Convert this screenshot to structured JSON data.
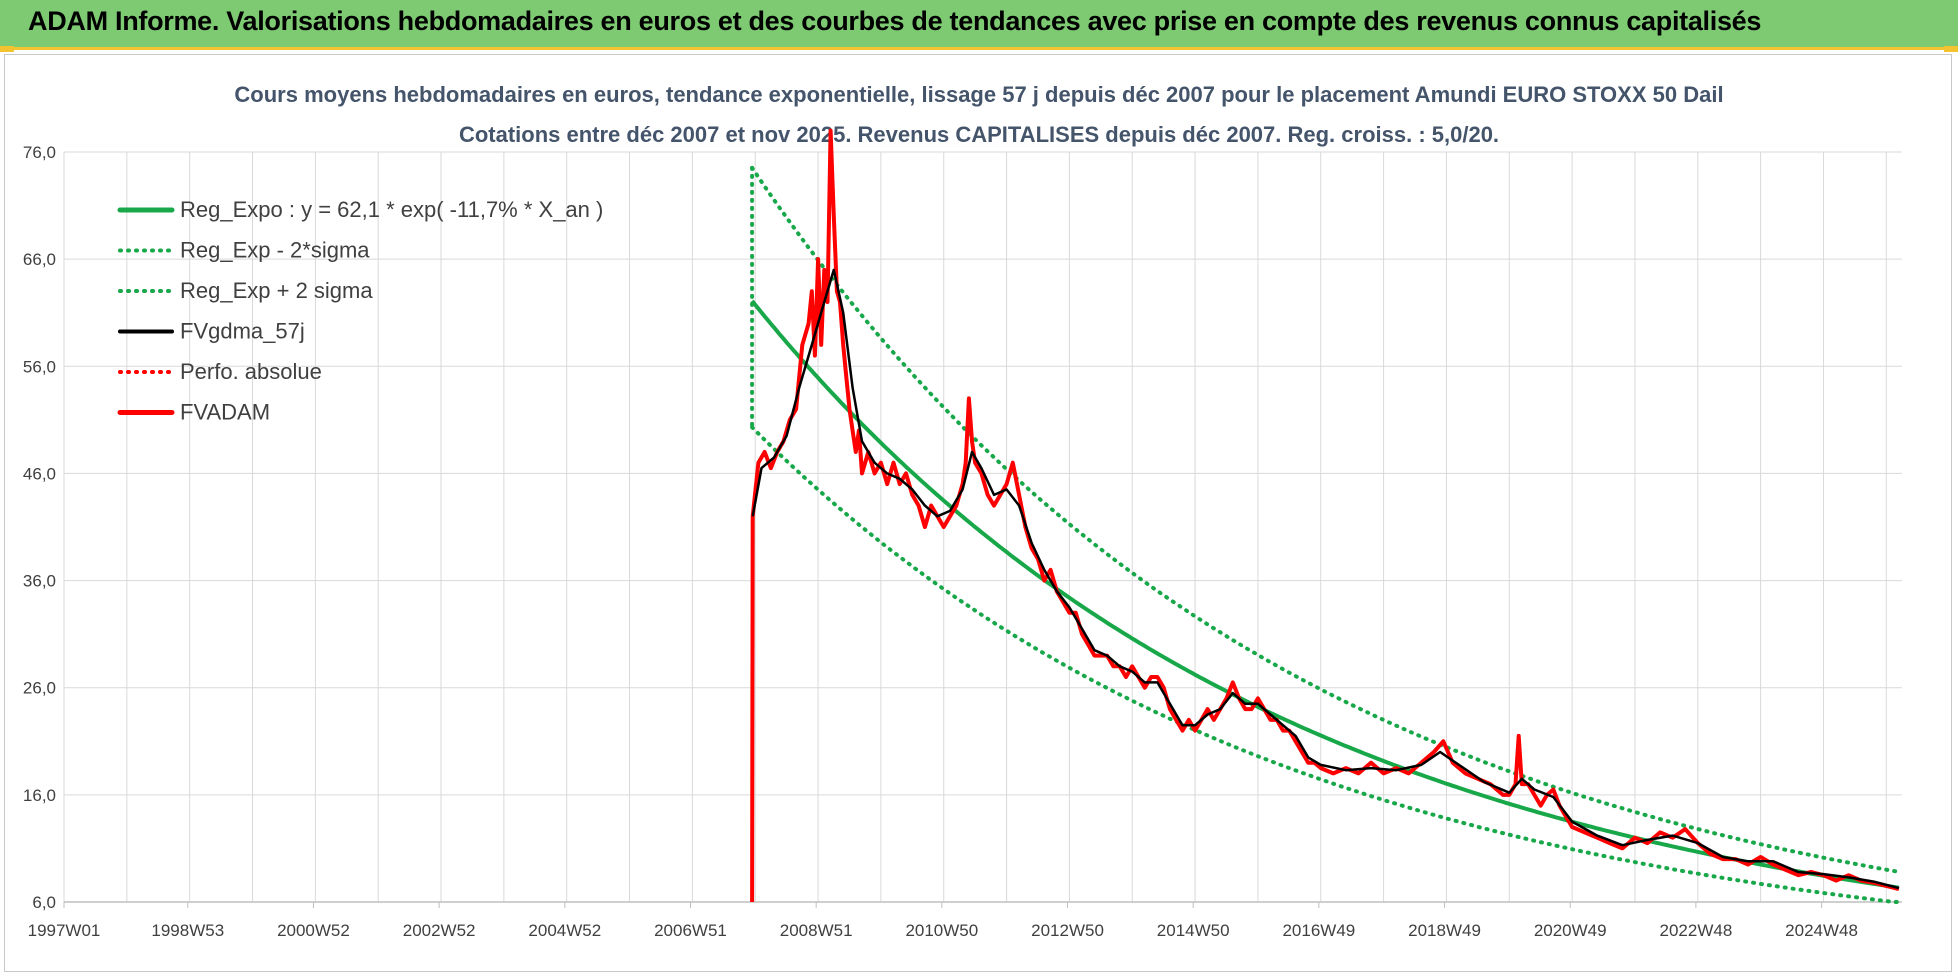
{
  "banner": {
    "title": "ADAM Informe. Valorisations hebdomadaires en euros et des courbes de tendances avec prise en compte des revenus connus capitalisés"
  },
  "colors": {
    "banner": "#7dca72",
    "trend": "#18a84a",
    "smooth": "#000000",
    "price": "#ff0000",
    "grid": "#d9d9d9"
  },
  "chart_data": {
    "type": "line",
    "title": "Cours moyens hebdomadaires en euros, tendance exponentielle, lissage 57 j depuis déc 2007 pour le placement Amundi EURO STOXX 50 Dail",
    "subtitle": "Cotations entre déc 2007 et nov 2025. Revenus CAPITALISES depuis déc 2007. Reg. croiss. : 5,0/20.",
    "x_ticks": [
      "1997W01",
      "1998W53",
      "2000W52",
      "2002W52",
      "2004W52",
      "2006W51",
      "2008W51",
      "2010W50",
      "2012W50",
      "2014W50",
      "2016W49",
      "2018W49",
      "2020W49",
      "2022W48",
      "2024W48"
    ],
    "x_range": [
      1997.0,
      2026.25
    ],
    "y_ticks": [
      "6,0",
      "16,0",
      "26,0",
      "36,0",
      "46,0",
      "56,0",
      "66,0",
      "76,0"
    ],
    "ylim": [
      6,
      76
    ],
    "grid": true,
    "legend_position": "top-left",
    "legend": [
      {
        "label": "Reg_Expo : y = 62,1 * exp( -11,7% *  X_an )",
        "style": "solid-green"
      },
      {
        "label": "Reg_Exp - 2*sigma",
        "style": "dotted-green"
      },
      {
        "label": "Reg_Exp + 2 sigma",
        "style": "dotted-green"
      },
      {
        "label": "FVgdma_57j",
        "style": "solid-black"
      },
      {
        "label": "Perfo. absolue",
        "style": "dotted-red"
      },
      {
        "label": "FVADAM",
        "style": "solid-red"
      }
    ],
    "regression": {
      "start_x": 2007.95,
      "a": 62.1,
      "rate": -0.117,
      "upper_factor": 1.2,
      "lower_factor": 0.81,
      "end_x": 2026.2
    },
    "series": [
      {
        "name": "FVADAM",
        "points": [
          [
            2007.95,
            6.0
          ],
          [
            2007.96,
            42
          ],
          [
            2008.05,
            47
          ],
          [
            2008.15,
            48
          ],
          [
            2008.25,
            46.5
          ],
          [
            2008.35,
            48
          ],
          [
            2008.45,
            49
          ],
          [
            2008.55,
            51
          ],
          [
            2008.65,
            52
          ],
          [
            2008.75,
            58
          ],
          [
            2008.85,
            60
          ],
          [
            2008.9,
            63
          ],
          [
            2008.95,
            57
          ],
          [
            2009.0,
            66
          ],
          [
            2009.05,
            58
          ],
          [
            2009.1,
            65
          ],
          [
            2009.15,
            62
          ],
          [
            2009.2,
            78
          ],
          [
            2009.25,
            70
          ],
          [
            2009.3,
            63
          ],
          [
            2009.35,
            62
          ],
          [
            2009.4,
            58
          ],
          [
            2009.45,
            55
          ],
          [
            2009.5,
            52
          ],
          [
            2009.55,
            50
          ],
          [
            2009.6,
            48
          ],
          [
            2009.65,
            50
          ],
          [
            2009.7,
            46
          ],
          [
            2009.8,
            48
          ],
          [
            2009.9,
            46
          ],
          [
            2010.0,
            47
          ],
          [
            2010.1,
            45
          ],
          [
            2010.2,
            47
          ],
          [
            2010.3,
            45
          ],
          [
            2010.4,
            46
          ],
          [
            2010.5,
            44
          ],
          [
            2010.6,
            43
          ],
          [
            2010.7,
            41
          ],
          [
            2010.8,
            43
          ],
          [
            2010.9,
            42
          ],
          [
            2011.0,
            41
          ],
          [
            2011.1,
            42
          ],
          [
            2011.2,
            43
          ],
          [
            2011.3,
            45
          ],
          [
            2011.35,
            47
          ],
          [
            2011.4,
            53
          ],
          [
            2011.45,
            49
          ],
          [
            2011.5,
            47
          ],
          [
            2011.6,
            46
          ],
          [
            2011.7,
            44
          ],
          [
            2011.8,
            43
          ],
          [
            2011.9,
            44
          ],
          [
            2012.0,
            45
          ],
          [
            2012.1,
            47
          ],
          [
            2012.2,
            44
          ],
          [
            2012.3,
            41
          ],
          [
            2012.4,
            39
          ],
          [
            2012.5,
            38
          ],
          [
            2012.6,
            36
          ],
          [
            2012.7,
            37
          ],
          [
            2012.8,
            35
          ],
          [
            2012.9,
            34
          ],
          [
            2013.0,
            33
          ],
          [
            2013.1,
            33
          ],
          [
            2013.2,
            31
          ],
          [
            2013.3,
            30
          ],
          [
            2013.4,
            29
          ],
          [
            2013.5,
            29
          ],
          [
            2013.6,
            29
          ],
          [
            2013.7,
            28
          ],
          [
            2013.8,
            28
          ],
          [
            2013.9,
            27
          ],
          [
            2014.0,
            28
          ],
          [
            2014.1,
            27
          ],
          [
            2014.2,
            26
          ],
          [
            2014.3,
            27
          ],
          [
            2014.4,
            27
          ],
          [
            2014.5,
            26
          ],
          [
            2014.6,
            24
          ],
          [
            2014.7,
            23
          ],
          [
            2014.8,
            22
          ],
          [
            2014.9,
            23
          ],
          [
            2015.0,
            22
          ],
          [
            2015.1,
            23
          ],
          [
            2015.2,
            24
          ],
          [
            2015.3,
            23
          ],
          [
            2015.4,
            24
          ],
          [
            2015.5,
            25
          ],
          [
            2015.6,
            26.5
          ],
          [
            2015.7,
            25
          ],
          [
            2015.8,
            24
          ],
          [
            2015.9,
            24
          ],
          [
            2016.0,
            25
          ],
          [
            2016.1,
            24
          ],
          [
            2016.2,
            23
          ],
          [
            2016.3,
            23
          ],
          [
            2016.4,
            22
          ],
          [
            2016.5,
            22
          ],
          [
            2016.6,
            21
          ],
          [
            2016.7,
            20
          ],
          [
            2016.8,
            19
          ],
          [
            2016.9,
            19
          ],
          [
            2017.0,
            18.5
          ],
          [
            2017.2,
            18
          ],
          [
            2017.4,
            18.5
          ],
          [
            2017.6,
            18
          ],
          [
            2017.8,
            19
          ],
          [
            2018.0,
            18
          ],
          [
            2018.2,
            18.5
          ],
          [
            2018.4,
            18
          ],
          [
            2018.6,
            19
          ],
          [
            2018.8,
            20
          ],
          [
            2018.95,
            21
          ],
          [
            2019.1,
            19
          ],
          [
            2019.3,
            18
          ],
          [
            2019.5,
            17.5
          ],
          [
            2019.7,
            17
          ],
          [
            2019.9,
            16
          ],
          [
            2020.0,
            16
          ],
          [
            2020.1,
            17
          ],
          [
            2020.15,
            21.5
          ],
          [
            2020.2,
            17
          ],
          [
            2020.3,
            17
          ],
          [
            2020.4,
            16
          ],
          [
            2020.5,
            15
          ],
          [
            2020.6,
            16
          ],
          [
            2020.7,
            16.5
          ],
          [
            2020.8,
            15
          ],
          [
            2020.9,
            14
          ],
          [
            2021.0,
            13
          ],
          [
            2021.2,
            12.5
          ],
          [
            2021.4,
            12
          ],
          [
            2021.6,
            11.5
          ],
          [
            2021.8,
            11
          ],
          [
            2022.0,
            12
          ],
          [
            2022.2,
            11.5
          ],
          [
            2022.4,
            12.5
          ],
          [
            2022.6,
            12
          ],
          [
            2022.8,
            12.8
          ],
          [
            2023.0,
            11.5
          ],
          [
            2023.2,
            10.5
          ],
          [
            2023.4,
            10
          ],
          [
            2023.6,
            10
          ],
          [
            2023.8,
            9.5
          ],
          [
            2024.0,
            10.2
          ],
          [
            2024.2,
            9.5
          ],
          [
            2024.4,
            9
          ],
          [
            2024.6,
            8.5
          ],
          [
            2024.8,
            8.8
          ],
          [
            2025.0,
            8.5
          ],
          [
            2025.2,
            8
          ],
          [
            2025.4,
            8.5
          ],
          [
            2025.6,
            8
          ],
          [
            2025.8,
            7.8
          ],
          [
            2026.0,
            7.5
          ],
          [
            2026.2,
            7.2
          ]
        ]
      },
      {
        "name": "FVgdma_57j",
        "points": [
          [
            2007.96,
            42
          ],
          [
            2008.1,
            46.5
          ],
          [
            2008.3,
            47.5
          ],
          [
            2008.5,
            49.5
          ],
          [
            2008.7,
            54
          ],
          [
            2008.9,
            58
          ],
          [
            2009.1,
            62
          ],
          [
            2009.25,
            65
          ],
          [
            2009.4,
            61
          ],
          [
            2009.55,
            54
          ],
          [
            2009.7,
            49
          ],
          [
            2009.9,
            47
          ],
          [
            2010.1,
            46
          ],
          [
            2010.3,
            45.5
          ],
          [
            2010.5,
            44.5
          ],
          [
            2010.7,
            43
          ],
          [
            2010.9,
            42
          ],
          [
            2011.1,
            42.5
          ],
          [
            2011.3,
            44.5
          ],
          [
            2011.45,
            48
          ],
          [
            2011.6,
            46.5
          ],
          [
            2011.8,
            44
          ],
          [
            2012.0,
            44.5
          ],
          [
            2012.2,
            43
          ],
          [
            2012.4,
            39.5
          ],
          [
            2012.6,
            37
          ],
          [
            2012.8,
            35
          ],
          [
            2013.0,
            33.5
          ],
          [
            2013.2,
            31.5
          ],
          [
            2013.4,
            29.5
          ],
          [
            2013.6,
            29
          ],
          [
            2013.8,
            28
          ],
          [
            2014.0,
            27.5
          ],
          [
            2014.2,
            26.5
          ],
          [
            2014.4,
            26.5
          ],
          [
            2014.6,
            24.5
          ],
          [
            2014.8,
            22.5
          ],
          [
            2015.0,
            22.5
          ],
          [
            2015.2,
            23.5
          ],
          [
            2015.4,
            24
          ],
          [
            2015.6,
            25.5
          ],
          [
            2015.8,
            24.5
          ],
          [
            2016.0,
            24.5
          ],
          [
            2016.2,
            23.5
          ],
          [
            2016.4,
            22.5
          ],
          [
            2016.6,
            21.5
          ],
          [
            2016.8,
            19.5
          ],
          [
            2017.0,
            18.8
          ],
          [
            2017.4,
            18.3
          ],
          [
            2017.8,
            18.5
          ],
          [
            2018.2,
            18.3
          ],
          [
            2018.6,
            18.8
          ],
          [
            2018.9,
            20
          ],
          [
            2019.2,
            18.8
          ],
          [
            2019.6,
            17.2
          ],
          [
            2020.0,
            16.2
          ],
          [
            2020.2,
            17.5
          ],
          [
            2020.4,
            16.5
          ],
          [
            2020.7,
            15.8
          ],
          [
            2021.0,
            13.5
          ],
          [
            2021.4,
            12.2
          ],
          [
            2021.8,
            11.3
          ],
          [
            2022.2,
            11.8
          ],
          [
            2022.6,
            12.2
          ],
          [
            2023.0,
            11.5
          ],
          [
            2023.4,
            10.2
          ],
          [
            2023.8,
            9.8
          ],
          [
            2024.2,
            9.8
          ],
          [
            2024.6,
            8.8
          ],
          [
            2025.0,
            8.6
          ],
          [
            2025.4,
            8.3
          ],
          [
            2025.8,
            7.9
          ],
          [
            2026.2,
            7.3
          ]
        ]
      }
    ]
  }
}
